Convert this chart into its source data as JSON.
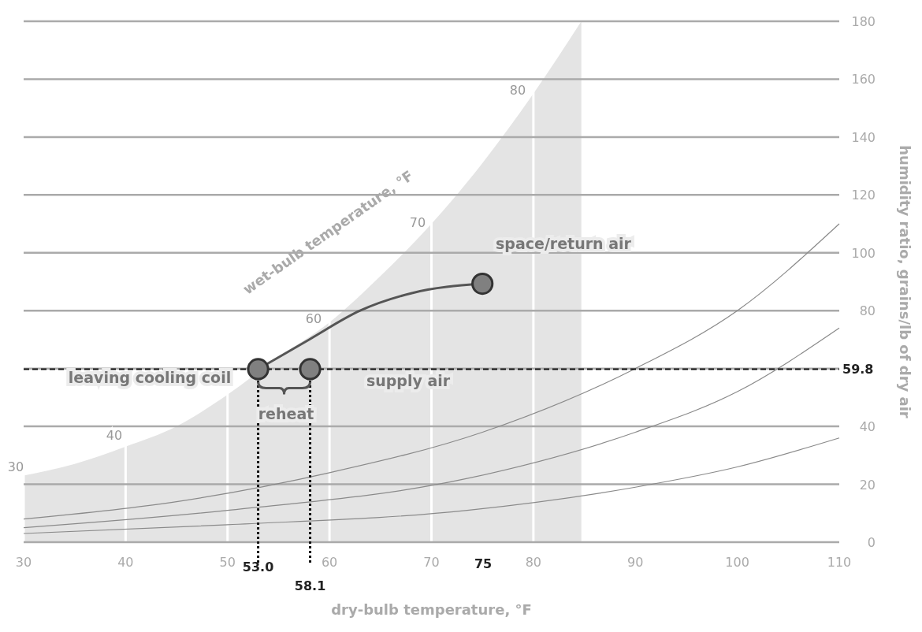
{
  "chart_data": {
    "type": "line",
    "xlabel": "dry-bulb temperature, °F",
    "ylabel": "humidity ratio, grains/lb of dry air",
    "xlim": [
      30,
      110
    ],
    "xticks": [
      30,
      40,
      50,
      60,
      70,
      80,
      90,
      100,
      110
    ],
    "ylim": [
      0,
      180
    ],
    "yticks": [
      0,
      20,
      40,
      {
        "value": 60,
        "label": null
      },
      80,
      100,
      120,
      140,
      160,
      180
    ],
    "grid": true,
    "series": [
      {
        "type": "area",
        "color": "#e4e4e4",
        "x": [
          30,
          35,
          40,
          45,
          50,
          55,
          60,
          65,
          70,
          75,
          80,
          84.7
        ],
        "values": [
          23,
          27,
          33,
          40,
          51,
          64,
          76,
          92,
          110,
          131,
          155,
          180
        ]
      },
      {
        "color": "#8a8a8a",
        "x": [
          30,
          50,
          73.5,
          90,
          100,
          110
        ],
        "values": [
          3,
          6,
          11,
          19,
          26,
          36
        ]
      },
      {
        "color": "#8a8a8a",
        "x": [
          30,
          50,
          73.5,
          90,
          100,
          110
        ],
        "values": [
          5,
          11,
          22,
          38,
          52,
          74
        ]
      },
      {
        "color": "#8a8a8a",
        "x": [
          30,
          45,
          60,
          75,
          90,
          100,
          110
        ],
        "values": [
          8,
          14,
          24,
          38,
          60,
          80,
          110
        ]
      },
      {
        "color": "#555555",
        "x": [
          53,
          58,
          63,
          68,
          75
        ],
        "values": [
          59.8,
          70,
          80,
          86,
          89.3
        ]
      },
      {
        "type": "scatter",
        "color": "#808080",
        "marker": "circle",
        "x": [
          53.0,
          58.1,
          75
        ],
        "values": [
          59.8,
          59.8,
          89.3
        ]
      }
    ],
    "ref_lines": [
      {
        "axis": "x",
        "value": 53.0,
        "label": "53.0",
        "line_style": "dotted"
      },
      {
        "axis": "x",
        "value": 58.1,
        "label": "58.1",
        "line_style": "dotted"
      },
      {
        "axis": "y",
        "value": 59.8,
        "label": "59.8",
        "line_style": "dashed"
      }
    ],
    "annotations": [
      "space/return air",
      "supply air",
      "leaving cooling coil",
      "reheat",
      "75",
      "30",
      "40",
      "60",
      "70",
      "80",
      "wet-bulb temperature, °F"
    ]
  }
}
